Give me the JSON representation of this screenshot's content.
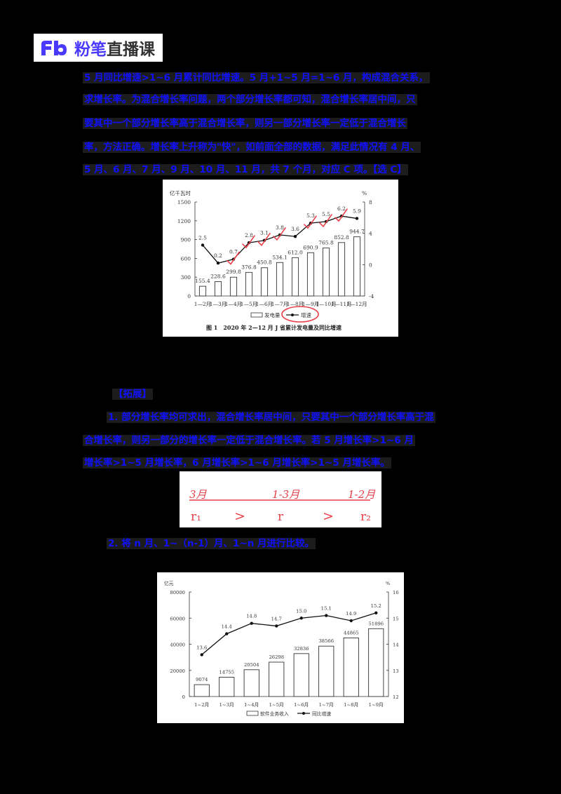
{
  "header": {
    "logo_mark": "Fb",
    "brand_primary": "粉笔",
    "brand_secondary": "直播课",
    "brand_color": "#4a3aff"
  },
  "paragraph1": {
    "lines": [
      "5 月同比增速>1~6 月累计同比增速。5 月+1~5 月=1~6 月，构成混合关系，",
      "求增长率。为混合增长率问题，两个部分增长率都可知，混合增长率居中间，只",
      "要其中一个部分增长率高于混合增长率，则另一部分增长率一定低于混合增长",
      "率，方法正确。增长率上升称为\"快\"，如前面全部的数据，满足此情况有 4 月、",
      "5 月、6 月、7 月、9 月、10 月、11 月，共 7 个月，对应 C 项。【选 C】"
    ]
  },
  "chart_data": [
    {
      "type": "bar",
      "title": "图 1　2020 年 2—12 月 J 省累计发电量及同比增速",
      "left_axis_label": "亿千瓦时",
      "right_axis_label": "%",
      "categories": [
        "1—2月",
        "1—3月",
        "1—4月",
        "1—5月",
        "1—6月",
        "1—7月",
        "1—8月",
        "1—9月",
        "1—10月",
        "1—11月",
        "1—12月"
      ],
      "series": [
        {
          "name": "发电量",
          "type": "bar",
          "axis": "left",
          "values": [
            155.4,
            228.6,
            299.8,
            376.8,
            450.8,
            534.1,
            612.0,
            690.9,
            765.8,
            852.8,
            944.7
          ]
        },
        {
          "name": "增速",
          "type": "line",
          "axis": "right",
          "values": [
            2.5,
            0.2,
            0.7,
            2.8,
            3.1,
            3.8,
            3.6,
            5.3,
            5.5,
            6.2,
            5.9
          ]
        }
      ],
      "left_ylim": [
        0,
        1500
      ],
      "left_ticks": [
        0,
        300,
        600,
        900,
        1200,
        1500
      ],
      "right_ylim": [
        -4,
        8
      ],
      "right_ticks": [
        -4,
        0,
        4,
        8
      ],
      "legend": [
        "发电量",
        "增速"
      ],
      "legend_position": "bottom",
      "annotations": "red handwritten check marks near 1—4月 through 1—11月 points; red circle around 增速 legend"
    },
    {
      "type": "bar",
      "title": "",
      "left_axis_label": "亿元",
      "right_axis_label": "%",
      "categories": [
        "1~2月",
        "1~3月",
        "1~4月",
        "1~5月",
        "1~6月",
        "1~7月",
        "1~8月",
        "1~9月"
      ],
      "series": [
        {
          "name": "软件业务收入",
          "type": "bar",
          "axis": "left",
          "values": [
            9074,
            14755,
            20504,
            26298,
            32836,
            38566,
            44865,
            51896
          ]
        },
        {
          "name": "同比增速",
          "type": "line",
          "axis": "right",
          "values": [
            13.6,
            14.4,
            14.8,
            14.7,
            15.0,
            15.1,
            14.9,
            15.2
          ]
        }
      ],
      "left_ylim": [
        0,
        80000
      ],
      "left_ticks": [
        0,
        20000,
        40000,
        60000,
        80000
      ],
      "right_ylim": [
        12,
        16
      ],
      "right_ticks": [
        12,
        13,
        14,
        15,
        16
      ],
      "legend": [
        "软件业务收入",
        "同比增速"
      ],
      "legend_position": "bottom"
    }
  ],
  "section2": {
    "heading": "【拓展】",
    "lines": [
      "1. 部分增长率均可求出，混合增长率居中间，只要其中一个部分增长率高于混",
      "合增长率，则另一部分的增长率一定低于混合增长率。若 5 月增长率>1~6 月",
      "增长率>1~5 月增长率，6 月增长率>1~6 月增长率>1~5 月增长率。"
    ]
  },
  "handwriting": {
    "top_labels": [
      "3月",
      "1-3月",
      "1-2月"
    ],
    "bottom_labels": [
      "r₁",
      ">",
      "r",
      ">",
      "r₂"
    ]
  },
  "section3": {
    "line": "2. 将 n 月、1~（n-1）月、1~n 月进行比较。"
  }
}
